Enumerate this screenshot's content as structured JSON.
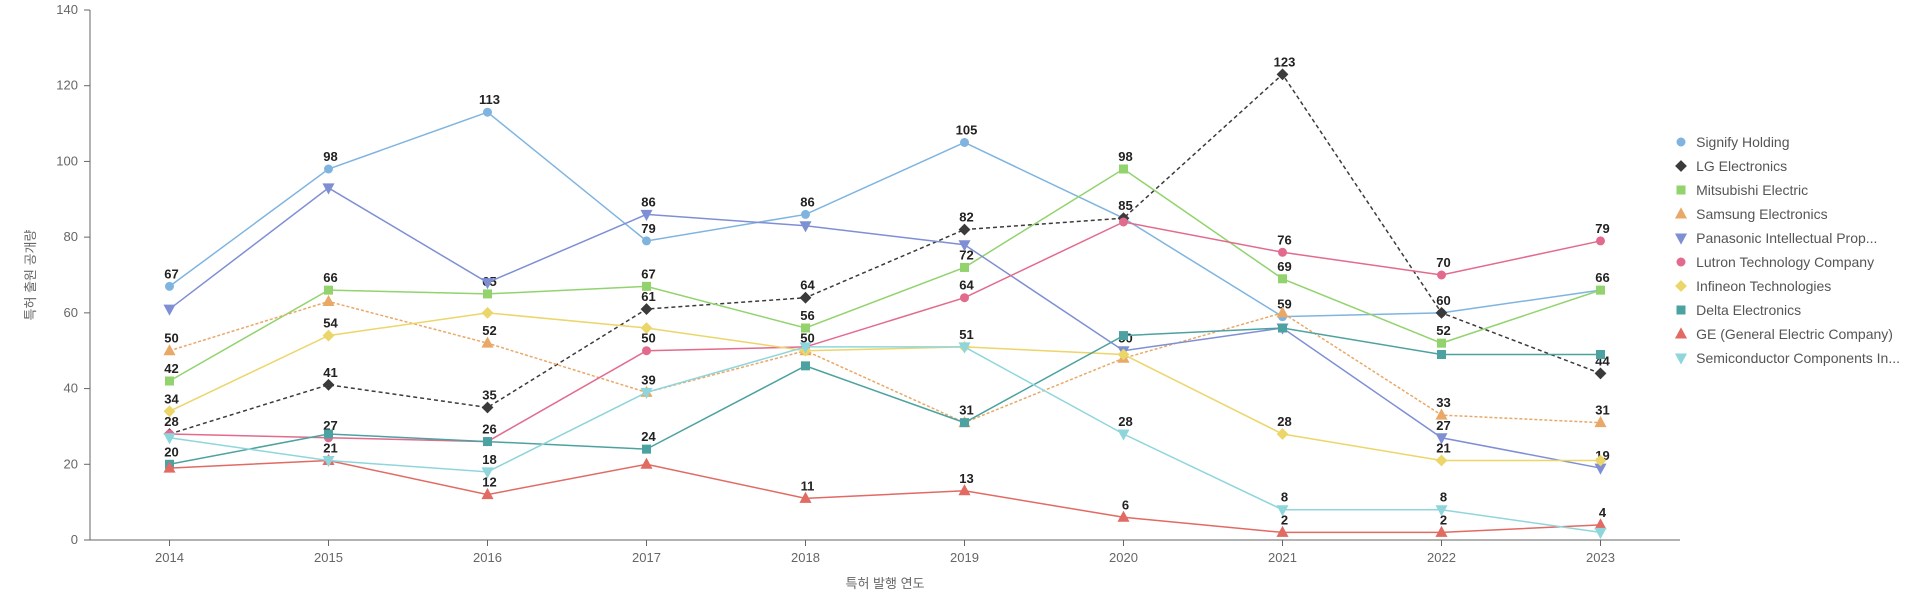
{
  "chart": {
    "type": "line",
    "background_color": "#ffffff",
    "axis_color": "#666666",
    "label_fontsize": 13,
    "datalabel_fontsize": 13,
    "datalabel_color": "#222222",
    "line_width": 1.5,
    "marker_size": 4,
    "x": {
      "title": "특허 발행 연도",
      "categories": [
        "2014",
        "2015",
        "2016",
        "2017",
        "2018",
        "2019",
        "2020",
        "2021",
        "2022",
        "2023"
      ]
    },
    "y": {
      "title": "특허 출원 공개량",
      "ylim": [
        0,
        140
      ],
      "ytick_step": 20
    },
    "series": [
      {
        "name": "Signify Holding",
        "marker": "circle",
        "color": "#7fb4e0",
        "values": [
          67,
          98,
          113,
          79,
          86,
          105,
          85,
          59,
          60,
          66
        ]
      },
      {
        "name": "LG Electronics",
        "marker": "diamond",
        "color": "#3b3b3b",
        "values": [
          28,
          41,
          35,
          61,
          64,
          82,
          85,
          123,
          60,
          44
        ]
      },
      {
        "name": "Mitsubishi Electric",
        "marker": "square",
        "color": "#92d36e",
        "values": [
          42,
          66,
          65,
          67,
          56,
          72,
          98,
          69,
          52,
          66
        ]
      },
      {
        "name": "Samsung Electronics",
        "marker": "triangle",
        "color": "#e9a867",
        "values": [
          50,
          63,
          52,
          39,
          50,
          31,
          48,
          60,
          33,
          31
        ]
      },
      {
        "name": "Panasonic Intellectual Prop...",
        "marker": "tri-down",
        "color": "#7e8fd4",
        "values": [
          61,
          93,
          68,
          86,
          83,
          78,
          50,
          56,
          27,
          19
        ]
      },
      {
        "name": "Lutron Technology Company",
        "marker": "circle",
        "color": "#e26a8d",
        "values": [
          28,
          27,
          26,
          50,
          51,
          64,
          84,
          76,
          70,
          79
        ]
      },
      {
        "name": "Infineon Technologies",
        "marker": "diamond",
        "color": "#ecd569",
        "values": [
          34,
          54,
          60,
          56,
          50,
          51,
          49,
          28,
          21,
          21
        ]
      },
      {
        "name": "Delta Electronics",
        "marker": "square",
        "color": "#4ca2a0",
        "values": [
          20,
          28,
          26,
          24,
          46,
          31,
          54,
          56,
          49,
          49
        ]
      },
      {
        "name": "GE (General Electric Company)",
        "marker": "triangle",
        "color": "#e16a63",
        "values": [
          19,
          21,
          12,
          20,
          11,
          13,
          6,
          2,
          2,
          4
        ]
      },
      {
        "name": "Semiconductor Components In...",
        "marker": "tri-down",
        "color": "#8fd6dc",
        "values": [
          27,
          21,
          18,
          39,
          51,
          51,
          28,
          8,
          8,
          2
        ]
      }
    ],
    "visible_labels": {
      "0": [
        67,
        98,
        113,
        79,
        86,
        105,
        null,
        59,
        null,
        66
      ],
      "1": [
        28,
        41,
        35,
        61,
        64,
        82,
        85,
        123,
        60,
        44
      ],
      "2": [
        42,
        66,
        65,
        67,
        56,
        72,
        98,
        69,
        52,
        null
      ],
      "3": [
        50,
        null,
        52,
        39,
        50,
        31,
        null,
        null,
        33,
        31
      ],
      "4": [
        null,
        null,
        null,
        86,
        null,
        null,
        50,
        null,
        27,
        19
      ],
      "5": [
        null,
        27,
        26,
        50,
        null,
        64,
        null,
        76,
        70,
        79
      ],
      "6": [
        34,
        54,
        null,
        null,
        null,
        51,
        null,
        28,
        21,
        null
      ],
      "7": [
        20,
        null,
        null,
        24,
        null,
        null,
        null,
        null,
        null,
        null
      ],
      "8": [
        null,
        21,
        12,
        null,
        11,
        13,
        6,
        2,
        2,
        4
      ],
      "9": [
        null,
        null,
        18,
        null,
        null,
        null,
        28,
        8,
        8,
        null
      ]
    },
    "legend": {
      "position": "right"
    }
  }
}
